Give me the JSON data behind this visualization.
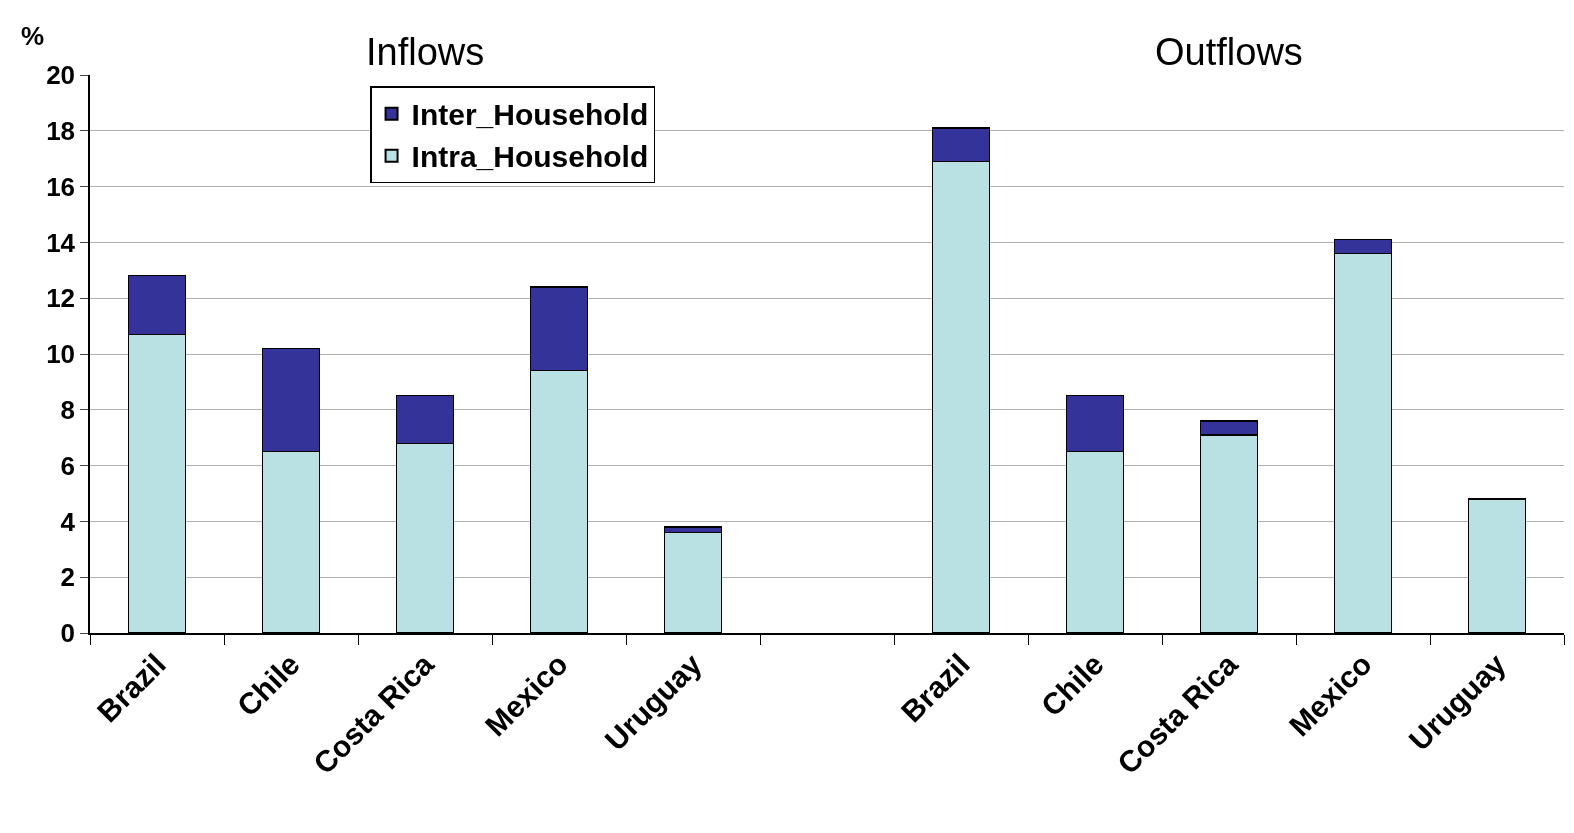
{
  "chart_data": {
    "type": "bar",
    "stacked": true,
    "ylabel": "%",
    "annotations": [
      "Inflows",
      "Outflows"
    ],
    "categories": [
      "Brazil",
      "Chile",
      "Costa Rica",
      "Mexico",
      "Uruguay",
      null,
      "Brazil",
      "Chile",
      "Costa Rica",
      "Mexico",
      "Uruguay"
    ],
    "series": [
      {
        "name": "Intra_Household",
        "color": "#b9e0e2",
        "values": [
          10.7,
          6.5,
          6.8,
          9.4,
          3.6,
          null,
          16.9,
          6.5,
          7.1,
          13.6,
          4.8
        ]
      },
      {
        "name": "Inter_Household",
        "color": "#333399",
        "values": [
          2.1,
          3.7,
          1.7,
          3.0,
          0.2,
          null,
          1.2,
          2.0,
          0.5,
          0.5,
          null
        ]
      }
    ],
    "ylim": [
      0,
      20
    ],
    "yticks": [
      0,
      2,
      4,
      6,
      8,
      10,
      12,
      14,
      16,
      18,
      20
    ],
    "grid": "y",
    "legend": "top"
  }
}
